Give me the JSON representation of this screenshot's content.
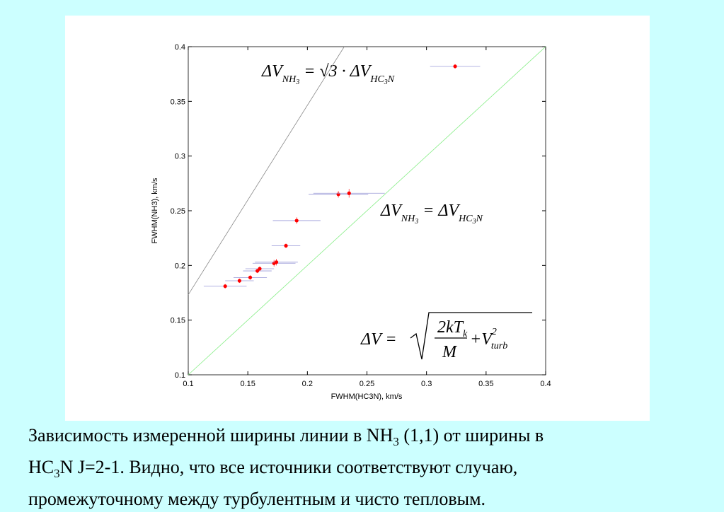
{
  "chart_data": {
    "type": "scatter",
    "xlabel": "FWHM(HC3N), km/s",
    "ylabel": "FWHM(NH3), km/s",
    "xlim": [
      0.1,
      0.4
    ],
    "ylim": [
      0.1,
      0.4
    ],
    "xticks": [
      0.1,
      0.15,
      0.2,
      0.25,
      0.3,
      0.35,
      0.4
    ],
    "yticks": [
      0.1,
      0.15,
      0.2,
      0.25,
      0.3,
      0.35,
      0.4
    ],
    "color": "#ff0000",
    "xerr_color": "#9a9ad8",
    "yerr_color": "#ff4040",
    "x": [
      0.131,
      0.143,
      0.152,
      0.158,
      0.16,
      0.172,
      0.174,
      0.182,
      0.191,
      0.226,
      0.235,
      0.324
    ],
    "y": [
      0.181,
      0.186,
      0.189,
      0.195,
      0.197,
      0.202,
      0.203,
      0.218,
      0.241,
      0.265,
      0.266,
      0.382
    ],
    "xerr": [
      0.018,
      0.012,
      0.014,
      0.012,
      0.012,
      0.018,
      0.018,
      0.012,
      0.02,
      0.025,
      0.03,
      0.021
    ],
    "yerr": [
      0.002,
      0.002,
      0.002,
      0.002,
      0.002,
      0.003,
      0.003,
      0.002,
      0.003,
      0.003,
      0.004,
      0.002
    ],
    "lines": [
      {
        "slope": 1.7320508,
        "color": "#888888"
      },
      {
        "slope": 1,
        "color": "#88ee88"
      }
    ],
    "formula1": {
      "a": "ΔV",
      "a_sub": "NH",
      "a_sub2": "3",
      "b": " = √3 · ΔV",
      "b_sub": "HC",
      "b_sub2": "3",
      "b_sub3": "N"
    },
    "formula2": {
      "a": "ΔV",
      "a_sub": "NH",
      "a_sub2": "3",
      "b": " = ΔV",
      "b_sub": "HC",
      "b_sub2": "3",
      "b_sub3": "N"
    },
    "formula3": {
      "lhs": "ΔV =",
      "num": "2kT",
      "num_sub": "k",
      "den": "M",
      "plus": "+V",
      "sup": "2",
      "sub": "turb"
    }
  },
  "caption": {
    "l1a": "Зависимость измеренной ширины линии в NH",
    "l1sub": "3",
    "l1b": " (1,1) от ширины в",
    "l2a": "HC",
    "l2sub": "3",
    "l2b": "N J=2-1. Видно, что все источники соответствуют случаю,",
    "l3": "промежуточному между турбулентным и чисто тепловым."
  }
}
